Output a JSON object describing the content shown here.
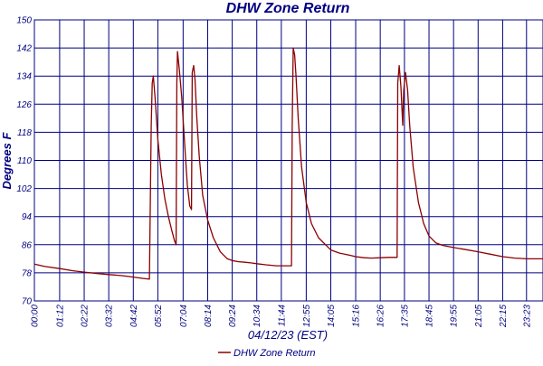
{
  "chart_data": {
    "type": "line",
    "title": "DHW Zone Return",
    "xlabel": "04/12/23 (EST)",
    "ylabel": "Degrees F",
    "ylim": [
      70,
      150
    ],
    "yticks": [
      70,
      78,
      86,
      94,
      102,
      110,
      118,
      126,
      134,
      142,
      150
    ],
    "xlim": [
      0,
      1450
    ],
    "xtick_labels": [
      "00:00",
      "01:12",
      "02:22",
      "03:32",
      "04:42",
      "05:52",
      "07:04",
      "08:14",
      "09:24",
      "10:34",
      "11:44",
      "12:55",
      "14:05",
      "15:16",
      "16:26",
      "17:35",
      "18:45",
      "19:55",
      "21:05",
      "22:15",
      "23:23"
    ],
    "xtick_minutes": [
      0,
      72,
      142,
      212,
      282,
      352,
      424,
      494,
      564,
      634,
      704,
      775,
      845,
      916,
      986,
      1055,
      1125,
      1195,
      1265,
      1335,
      1403
    ],
    "grid": true,
    "legend_position": "bottom-center",
    "colors": {
      "grid": "#000080",
      "axis_text": "#000080",
      "series": "#8b0000"
    },
    "series": [
      {
        "name": "DHW Zone Return",
        "x": [
          0,
          30,
          72,
          110,
          142,
          180,
          212,
          250,
          282,
          310,
          328,
          333,
          336,
          339,
          344,
          352,
          362,
          372,
          382,
          392,
          400,
          404,
          406,
          408,
          413,
          420,
          430,
          436,
          443,
          448,
          450,
          454,
          458,
          463,
          470,
          480,
          494,
          510,
          530,
          550,
          564,
          580,
          600,
          620,
          634,
          660,
          690,
          704,
          720,
          733,
          735,
          738,
          742,
          746,
          752,
          762,
          775,
          790,
          810,
          830,
          845,
          870,
          900,
          916,
          940,
          960,
          986,
          1010,
          1030,
          1034,
          1036,
          1040,
          1045,
          1050,
          1053,
          1058,
          1064,
          1070,
          1080,
          1095,
          1110,
          1125,
          1145,
          1165,
          1195,
          1230,
          1265,
          1300,
          1335,
          1370,
          1403,
          1420,
          1450
        ],
        "y": [
          80.5,
          79.8,
          79.2,
          78.6,
          78.2,
          77.8,
          77.5,
          77.2,
          76.8,
          76.4,
          76.2,
          120,
          132,
          134,
          128,
          116,
          106,
          99,
          94,
          90,
          87,
          86,
          132,
          141,
          136,
          128,
          112,
          103,
          97,
          96,
          135,
          137,
          133,
          122,
          111,
          100,
          93,
          88,
          84,
          82,
          81.5,
          81.2,
          81.0,
          80.8,
          80.6,
          80.3,
          80.0,
          80.0,
          80.0,
          80.0,
          120,
          142,
          140,
          134,
          122,
          108,
          98,
          92,
          88,
          86,
          84.5,
          83.6,
          83.0,
          82.6,
          82.3,
          82.2,
          82.3,
          82.4,
          82.4,
          82.4,
          132,
          137,
          131,
          120,
          130,
          135,
          130,
          120,
          108,
          98,
          92,
          88.5,
          86.5,
          85.8,
          85.2,
          84.6,
          84.0,
          83.3,
          82.6,
          82.2,
          82.0,
          82.0,
          82.0
        ]
      }
    ]
  }
}
